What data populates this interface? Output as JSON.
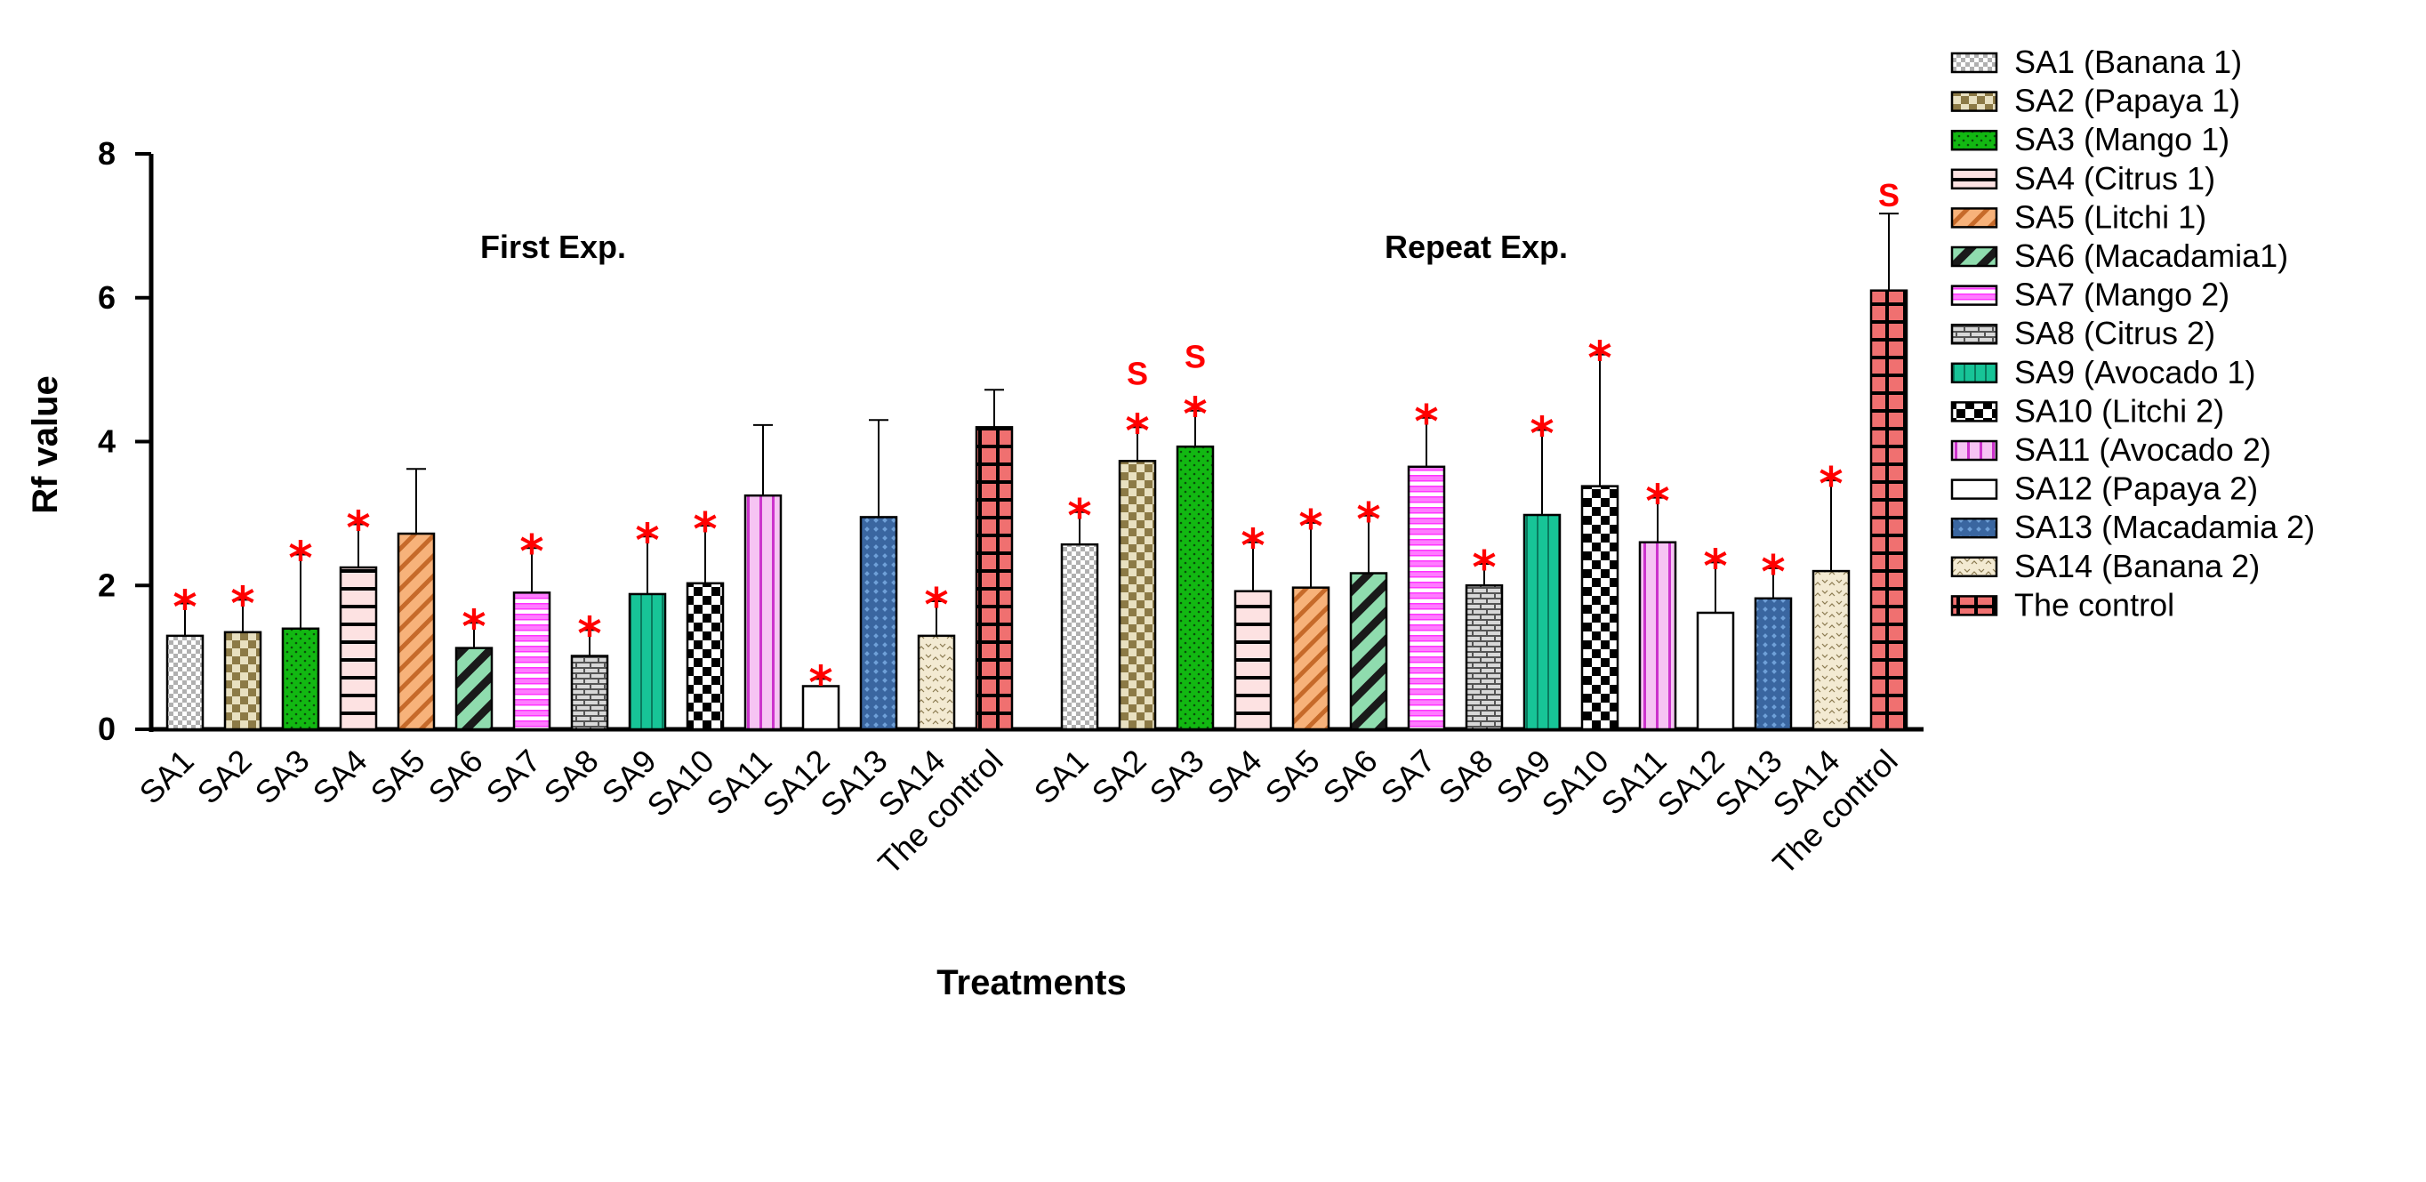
{
  "chart_data": {
    "type": "bar",
    "ylabel": "Rf value",
    "xlabel": "Treatments",
    "ylim": [
      0,
      8
    ],
    "yticks": [
      "0",
      "2",
      "4",
      "6",
      "8"
    ],
    "grid": false,
    "legend_placement": "right",
    "annotation_note": "* and S marks shown above bars",
    "groups": [
      {
        "title": "First Exp.",
        "categories": [
          "SA1",
          "SA2",
          "SA3",
          "SA4",
          "SA5",
          "SA6",
          "SA7",
          "SA8",
          "SA9",
          "SA10",
          "SA11",
          "SA12",
          "SA13",
          "SA14",
          "The control"
        ],
        "values": [
          1.3,
          1.35,
          1.4,
          2.25,
          2.72,
          1.13,
          1.9,
          1.02,
          1.88,
          2.03,
          3.25,
          0.6,
          2.95,
          1.3,
          4.2
        ],
        "errors": [
          0.45,
          0.45,
          1.03,
          0.6,
          0.9,
          0.35,
          0.62,
          0.36,
          0.8,
          0.8,
          0.98,
          0.1,
          1.35,
          0.48,
          0.52
        ],
        "star": [
          true,
          true,
          true,
          true,
          false,
          true,
          true,
          true,
          true,
          true,
          false,
          true,
          false,
          true,
          false
        ],
        "s_mark": [
          false,
          false,
          false,
          false,
          false,
          false,
          false,
          false,
          false,
          false,
          false,
          false,
          false,
          false,
          false
        ]
      },
      {
        "title": "Repeat Exp.",
        "categories": [
          "SA1",
          "SA2",
          "SA3",
          "SA4",
          "SA5",
          "SA6",
          "SA7",
          "SA8",
          "SA9",
          "SA10",
          "SA11",
          "SA12",
          "SA13",
          "SA14",
          "The control"
        ],
        "values": [
          2.57,
          3.73,
          3.93,
          1.92,
          1.97,
          2.17,
          3.65,
          2.0,
          2.98,
          3.38,
          2.6,
          1.62,
          1.82,
          2.2,
          6.1
        ],
        "errors": [
          0.45,
          0.47,
          0.5,
          0.68,
          0.9,
          0.8,
          0.68,
          0.3,
          1.18,
          1.83,
          0.62,
          0.7,
          0.42,
          1.26,
          1.07
        ],
        "star": [
          true,
          true,
          true,
          true,
          true,
          true,
          true,
          true,
          true,
          true,
          true,
          true,
          true,
          true,
          false
        ],
        "s_mark": [
          false,
          true,
          true,
          false,
          false,
          false,
          false,
          false,
          false,
          false,
          false,
          false,
          false,
          false,
          true
        ]
      }
    ],
    "star_symbol": "*",
    "s_symbol": "S",
    "series": [
      {
        "name": "SA1 (Banana 1)",
        "pattern": "checker-small",
        "fill": "#c8c8c8"
      },
      {
        "name": "SA2 (Papaya 1)",
        "pattern": "checker-olive",
        "fill": "#9c8a56"
      },
      {
        "name": "SA3 (Mango 1)",
        "pattern": "dots-green",
        "fill": "#1bbd1b"
      },
      {
        "name": "SA4 (Citrus 1)",
        "pattern": "hstripes-pink",
        "fill": "#fbd8d8"
      },
      {
        "name": "SA5 (Litchi 1)",
        "pattern": "diag-orange",
        "fill": "#f2a66a"
      },
      {
        "name": "SA6 (Macadamia1)",
        "pattern": "diag-green",
        "fill": "#8bd9a9"
      },
      {
        "name": "SA7 (Mango 2)",
        "pattern": "brick-magenta",
        "fill": "#ff66ff"
      },
      {
        "name": "SA8 (Citrus 2)",
        "pattern": "brick-gray",
        "fill": "#c0c0c0"
      },
      {
        "name": "SA9 (Avocado 1)",
        "pattern": "vstripes-teal",
        "fill": "#19cc99"
      },
      {
        "name": "SA10 (Litchi 2)",
        "pattern": "checker-bw",
        "fill": "#000000"
      },
      {
        "name": "SA11 (Avocado 2)",
        "pattern": "vstripes-pink",
        "fill": "#f3b8f0"
      },
      {
        "name": "SA12 (Papaya 2)",
        "pattern": "none",
        "fill": "#ffffff"
      },
      {
        "name": "SA13 (Macadamia 2)",
        "pattern": "diamond-blue",
        "fill": "#3f6ea8"
      },
      {
        "name": "SA14 (Banana 2)",
        "pattern": "wave-beige",
        "fill": "#f0e6cc"
      },
      {
        "name": "The control",
        "pattern": "grid-red",
        "fill": "#f07070"
      }
    ]
  }
}
